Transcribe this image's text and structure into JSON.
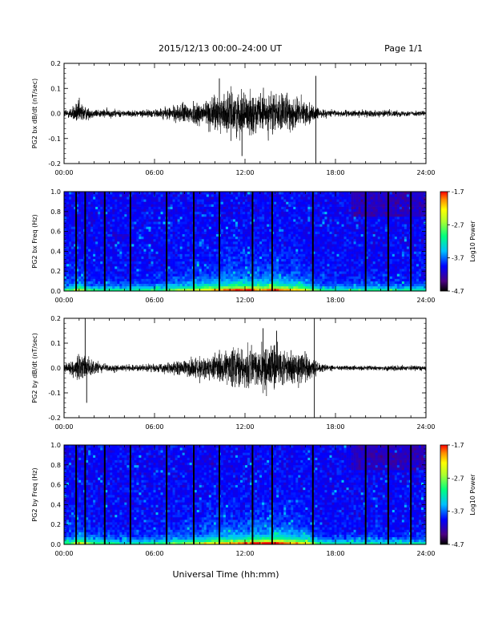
{
  "header": {
    "title": "2015/12/13  00:00–24:00 UT",
    "page": "Page 1/1"
  },
  "footer": {
    "xlabel": "Universal Time (hh:mm)"
  },
  "chart_data": [
    {
      "type": "line",
      "panel": "bx-waveform",
      "ylabel": "PG2 bx dB/dt (nT/sec)",
      "x_ticks": [
        "00:00",
        "06:00",
        "12:00",
        "18:00",
        "24:00"
      ],
      "xlim_hours": [
        0,
        24
      ],
      "ylim": [
        -0.2,
        0.2
      ],
      "y_ticks": [
        "0.2",
        "0.1",
        "0.0",
        "-0.1",
        "-0.2"
      ],
      "envelope": {
        "hours": [
          0,
          0.5,
          1.0,
          1.5,
          2.0,
          3.0,
          4.0,
          5.0,
          6.0,
          7.0,
          8.0,
          9.0,
          10.0,
          11.0,
          12.0,
          13.0,
          14.0,
          15.0,
          15.5,
          16.0,
          16.5,
          17.0,
          18.0,
          19.0,
          20.0,
          21.0,
          22.0,
          23.0,
          24.0
        ],
        "amplitude": [
          0.02,
          0.03,
          0.06,
          0.03,
          0.02,
          0.02,
          0.015,
          0.015,
          0.02,
          0.03,
          0.05,
          0.06,
          0.08,
          0.1,
          0.1,
          0.09,
          0.1,
          0.08,
          0.08,
          0.06,
          0.04,
          0.02,
          0.015,
          0.015,
          0.015,
          0.015,
          0.015,
          0.012,
          0.012
        ]
      },
      "spikes": [
        {
          "hour": 16.7,
          "value": 0.15
        },
        {
          "hour": 16.7,
          "value": -0.2
        },
        {
          "hour": 11.8,
          "value": -0.17
        },
        {
          "hour": 10.3,
          "value": 0.14
        }
      ]
    },
    {
      "type": "heatmap",
      "panel": "bx-spectrogram",
      "ylabel": "PG2 bx Freq (Hz)",
      "x_ticks": [
        "00:00",
        "06:00",
        "12:00",
        "18:00",
        "24:00"
      ],
      "xlim_hours": [
        0,
        24
      ],
      "ylim": [
        0.0,
        1.0
      ],
      "y_ticks": [
        "1.0",
        "0.8",
        "0.6",
        "0.4",
        "0.2",
        "0.0"
      ],
      "colorbar": {
        "label": "Log10 Power",
        "ticks": [
          "-1.7",
          "-2.7",
          "-3.7",
          "-4.7"
        ],
        "range": [
          -4.7,
          -1.7
        ]
      },
      "data_gap_hours": [
        0.8,
        1.4,
        2.7,
        4.4,
        6.8,
        8.6,
        10.3,
        12.5,
        13.8,
        16.5,
        20.0,
        21.5,
        23.0
      ]
    },
    {
      "type": "line",
      "panel": "by-waveform",
      "ylabel": "PG2 by dB/dt (nT/sec)",
      "x_ticks": [
        "00:00",
        "06:00",
        "12:00",
        "18:00",
        "24:00"
      ],
      "xlim_hours": [
        0,
        24
      ],
      "ylim": [
        -0.2,
        0.2
      ],
      "y_ticks": [
        "0.2",
        "0.1",
        "0.0",
        "-0.1",
        "-0.2"
      ],
      "envelope": {
        "hours": [
          0,
          0.5,
          1.0,
          1.5,
          2.0,
          3.0,
          4.0,
          5.0,
          6.0,
          7.0,
          8.0,
          9.0,
          10.0,
          11.0,
          12.0,
          13.0,
          14.0,
          15.0,
          15.5,
          16.0,
          16.5,
          17.0,
          18.0,
          19.0,
          20.0,
          21.0,
          22.0,
          23.0,
          24.0
        ],
        "amplitude": [
          0.02,
          0.03,
          0.07,
          0.05,
          0.03,
          0.02,
          0.015,
          0.015,
          0.02,
          0.03,
          0.04,
          0.05,
          0.07,
          0.08,
          0.09,
          0.1,
          0.11,
          0.09,
          0.08,
          0.07,
          0.04,
          0.02,
          0.012,
          0.012,
          0.012,
          0.012,
          0.012,
          0.012,
          0.012
        ]
      },
      "spikes": [
        {
          "hour": 1.4,
          "value": 0.2
        },
        {
          "hour": 1.5,
          "value": -0.14
        },
        {
          "hour": 16.6,
          "value": 0.2
        },
        {
          "hour": 16.6,
          "value": -0.2
        },
        {
          "hour": 14.1,
          "value": 0.15
        },
        {
          "hour": 13.2,
          "value": 0.16
        }
      ]
    },
    {
      "type": "heatmap",
      "panel": "by-spectrogram",
      "ylabel": "PG2 by Freq (Hz)",
      "x_ticks": [
        "00:00",
        "06:00",
        "12:00",
        "18:00",
        "24:00"
      ],
      "xlim_hours": [
        0,
        24
      ],
      "ylim": [
        0.0,
        1.0
      ],
      "y_ticks": [
        "1.0",
        "0.8",
        "0.6",
        "0.4",
        "0.2",
        "0.0"
      ],
      "colorbar": {
        "label": "Log10 Power",
        "ticks": [
          "-1.7",
          "-2.7",
          "-3.7",
          "-4.7"
        ],
        "range": [
          -4.7,
          -1.7
        ]
      },
      "data_gap_hours": [
        0.8,
        1.4,
        2.7,
        4.4,
        6.8,
        8.6,
        10.3,
        12.5,
        13.8,
        16.5,
        20.0,
        21.5,
        23.0
      ]
    }
  ]
}
